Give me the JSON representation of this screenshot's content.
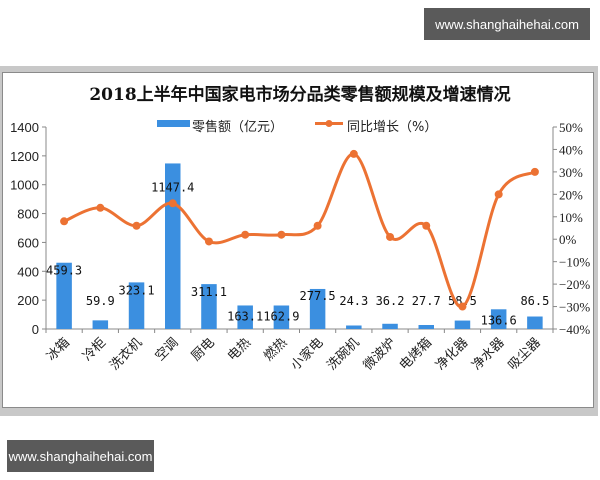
{
  "watermark": {
    "top_text": "www.shanghaihehai.com",
    "bottom_text": "www.shanghaihehai.com"
  },
  "colors": {
    "bar": "#3b8fe0",
    "line": "#ec7233",
    "axis": "#888888"
  },
  "chart_data": {
    "type": "bar",
    "title": "2018上半年中国家电市场分品类零售额规模及增速情况",
    "xlabel": "",
    "ylabel": "",
    "categories": [
      "冰箱",
      "冷柜",
      "洗衣机",
      "空调",
      "厨电",
      "电热",
      "燃热",
      "小家电",
      "洗碗机",
      "微波炉",
      "电烤箱",
      "净化器",
      "净水器",
      "吸尘器"
    ],
    "series": [
      {
        "name": "零售额（亿元）",
        "type": "bar",
        "axis": "left",
        "values": [
          459.3,
          59.9,
          323.1,
          1147.4,
          311.1,
          163.1,
          162.9,
          277.5,
          24.3,
          36.2,
          27.7,
          58.5,
          136.6,
          86.5
        ],
        "labels": [
          "459.3",
          "59.9",
          "323.1",
          "1147.4",
          "311.1",
          "163.1",
          "162.9",
          "277.5",
          "24.3",
          "36.2",
          "27.7",
          "58.5",
          "136.6",
          "86.5"
        ]
      },
      {
        "name": "同比增长（%）",
        "type": "line",
        "axis": "right",
        "values": [
          8,
          14,
          6,
          16,
          -1,
          2,
          2,
          6,
          38,
          1,
          6,
          -30,
          20,
          30
        ]
      }
    ],
    "ylim": [
      0,
      1400
    ],
    "yticks": [
      "0",
      "200",
      "400",
      "600",
      "800",
      "1000",
      "1200",
      "1400"
    ],
    "y2lim": [
      -40,
      50
    ],
    "y2ticks": [
      "-40%",
      "-30%",
      "-20%",
      "-10%",
      "0%",
      "10%",
      "20%",
      "30%",
      "40%",
      "50%"
    ],
    "grid": false,
    "legend_position": "top"
  }
}
